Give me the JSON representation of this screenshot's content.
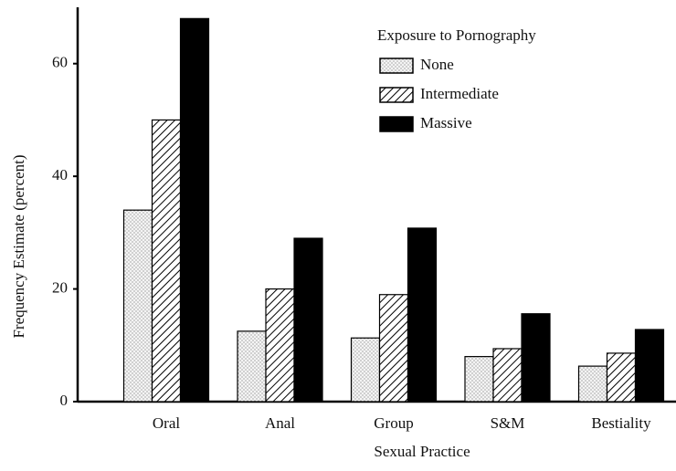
{
  "chart_data": {
    "type": "bar",
    "x_label": "Sexual Practice",
    "y_label": "Frequency Estimate (percent)",
    "legend_title": "Exposure to Pornography",
    "categories": [
      "Oral",
      "Anal",
      "Group",
      "S&M",
      "Bestiality"
    ],
    "series": [
      {
        "name": "None",
        "color": "#000000",
        "pattern": "dots",
        "values": [
          34,
          12.5,
          11.3,
          8,
          6.3
        ]
      },
      {
        "name": "Intermediate",
        "color": "#000000",
        "pattern": "hatch",
        "values": [
          50,
          20,
          19,
          9.4,
          8.6
        ]
      },
      {
        "name": "Massive",
        "color": "#000000",
        "pattern": "solid",
        "values": [
          68,
          29,
          30.8,
          15.6,
          12.8
        ]
      }
    ],
    "ylim": [
      0,
      70
    ],
    "yticks": [
      0,
      20,
      40,
      60
    ],
    "legend": "upper right"
  }
}
